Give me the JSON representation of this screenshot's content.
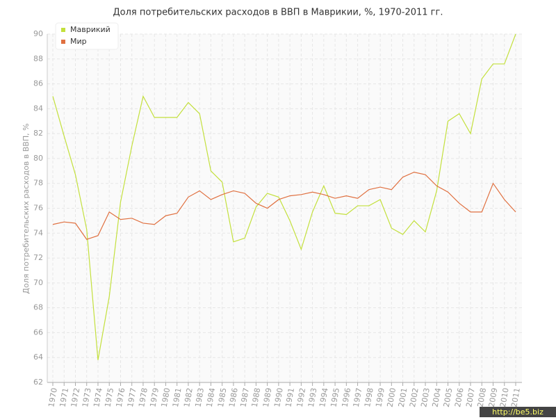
{
  "chart_data": {
    "type": "line",
    "title": "Доля потребительских расходов в ВВП в Маврикии, %, 1970-2011 гг.",
    "y_label": "Доля потребительских расходов в ВВП, %",
    "categories": [
      "1970",
      "1971",
      "1972",
      "1973",
      "1974",
      "1975",
      "1976",
      "1977",
      "1978",
      "1979",
      "1980",
      "1981",
      "1982",
      "1983",
      "1984",
      "1985",
      "1986",
      "1987",
      "1988",
      "1989",
      "1990",
      "1991",
      "1992",
      "1993",
      "1994",
      "1995",
      "1996",
      "1997",
      "1998",
      "1999",
      "2000",
      "2001",
      "2002",
      "2003",
      "2004",
      "2005",
      "2006",
      "2007",
      "2008",
      "2009",
      "2010",
      "2011"
    ],
    "series": [
      {
        "name": "Маврикий",
        "color": "#c3e03c",
        "values": [
          85.0,
          81.8,
          78.7,
          74.3,
          63.8,
          68.9,
          76.5,
          81.0,
          85.0,
          83.3,
          83.3,
          83.3,
          84.5,
          83.6,
          79.0,
          78.1,
          73.3,
          73.6,
          76.1,
          77.2,
          76.9,
          75.0,
          72.7,
          75.7,
          77.8,
          75.6,
          75.5,
          76.2,
          76.2,
          76.7,
          74.4,
          73.9,
          75.0,
          74.1,
          77.4,
          83.0,
          83.6,
          82.0,
          86.4,
          87.6,
          87.6,
          90.0
        ]
      },
      {
        "name": "Мир",
        "color": "#e07040",
        "values": [
          74.7,
          74.9,
          74.8,
          73.5,
          73.8,
          75.7,
          75.1,
          75.2,
          74.8,
          74.7,
          75.4,
          75.6,
          76.9,
          77.4,
          76.7,
          77.1,
          77.4,
          77.2,
          76.4,
          76.0,
          76.7,
          77.0,
          77.1,
          77.3,
          77.1,
          76.8,
          77.0,
          76.8,
          77.5,
          77.7,
          77.5,
          78.5,
          78.9,
          78.7,
          77.8,
          77.3,
          76.4,
          75.7,
          75.7,
          78.0,
          76.7,
          75.7
        ]
      }
    ],
    "ylim": [
      62,
      90
    ],
    "yticks": [
      62,
      64,
      66,
      68,
      70,
      72,
      74,
      76,
      78,
      80,
      82,
      84,
      86,
      88,
      90
    ],
    "grid": true,
    "legend": "top-left",
    "watermark": "http://be5.biz"
  }
}
